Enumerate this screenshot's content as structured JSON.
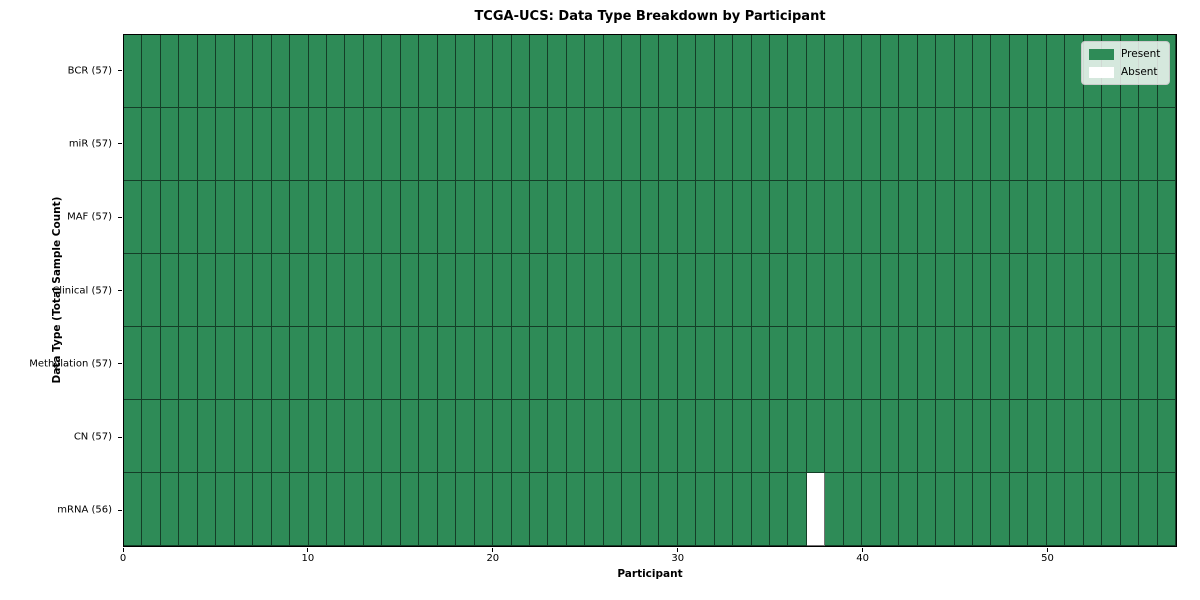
{
  "chart_data": {
    "type": "heatmap",
    "title": "TCGA-UCS: Data Type Breakdown by Participant",
    "xlabel": "Participant",
    "ylabel": "Data Type (Total Sample Count)",
    "n_participants": 57,
    "xlim": [
      0,
      57
    ],
    "x_ticks": [
      0,
      10,
      20,
      30,
      40,
      50
    ],
    "grid": true,
    "rows": [
      {
        "label": "BCR (57)",
        "data_type": "BCR",
        "total_samples": 57,
        "absent_participants": []
      },
      {
        "label": "miR (57)",
        "data_type": "miR",
        "total_samples": 57,
        "absent_participants": []
      },
      {
        "label": "MAF (57)",
        "data_type": "MAF",
        "total_samples": 57,
        "absent_participants": []
      },
      {
        "label": "Clinical (57)",
        "data_type": "Clinical",
        "total_samples": 57,
        "absent_participants": []
      },
      {
        "label": "Methylation (57)",
        "data_type": "Methylation",
        "total_samples": 57,
        "absent_participants": []
      },
      {
        "label": "CN (57)",
        "data_type": "CN",
        "total_samples": 57,
        "absent_participants": []
      },
      {
        "label": "mRNA (56)",
        "data_type": "mRNA",
        "total_samples": 56,
        "absent_participants": [
          37
        ]
      }
    ],
    "legend": {
      "position": "upper right",
      "items": [
        {
          "label": "Present",
          "color": "#2E8B57"
        },
        {
          "label": "Absent",
          "color": "#FFFFFF"
        }
      ]
    },
    "colors": {
      "present": "#2E8B57",
      "absent": "#FFFFFF",
      "grid_line": "rgba(0,0,0,0.55)",
      "spine": "#000000",
      "background": "#FFFFFF"
    }
  }
}
